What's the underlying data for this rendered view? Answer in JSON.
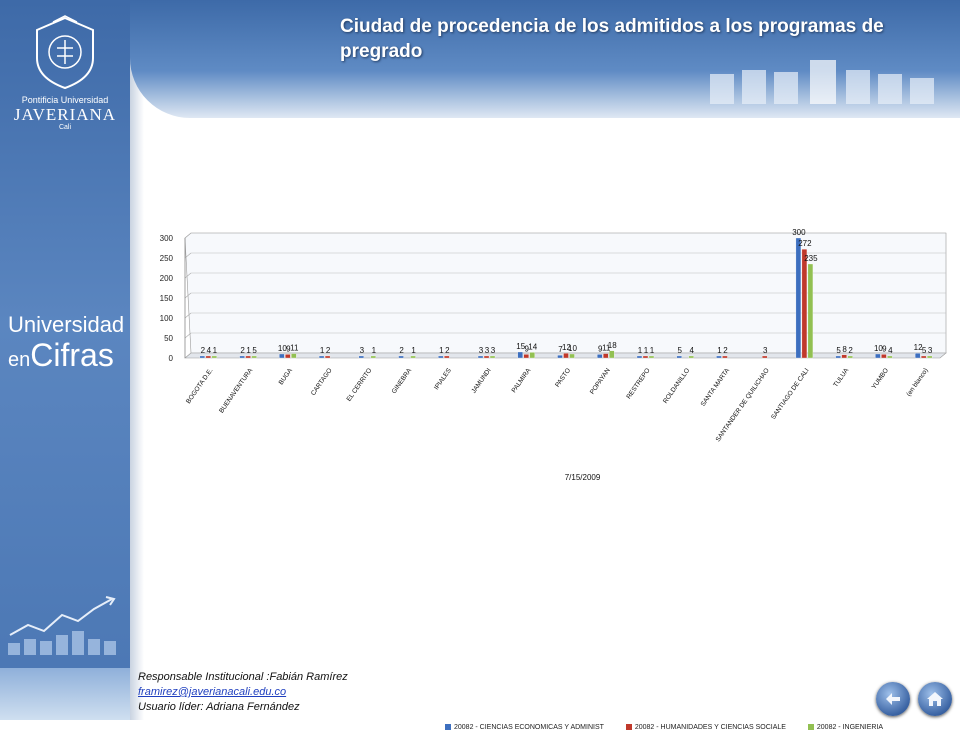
{
  "title": "Ciudad de procedencia de los admitidos a los programas de pregrado",
  "logo": {
    "line1": "Pontificia Universidad",
    "line2": "JAVERIANA",
    "line3": "Cali"
  },
  "brand": {
    "line1": "Universidad",
    "line2a": "en",
    "line2b": "Cifras"
  },
  "footer": {
    "responsible": "Responsable Institucional :Fabián Ramírez",
    "email": "framirez@javerianacali.edu.co",
    "leader": "Usuario líder: Adriana Fernández"
  },
  "colors": {
    "series1": "#3d6fbf",
    "series2": "#c0392b",
    "series3": "#92c052",
    "accent": "#4a76b3"
  },
  "icons": {
    "back": "back-arrow-icon",
    "home": "home-icon"
  },
  "chart_data": {
    "type": "bar",
    "title": "",
    "xlabel": "7/15/2009",
    "ylabel": "",
    "ylim": [
      0,
      300
    ],
    "yticks": [
      0,
      50,
      100,
      150,
      200,
      250,
      300
    ],
    "legend_position": "bottom",
    "categories": [
      "BOGOTA D.E.",
      "BUENAVENTURA",
      "BUGA",
      "CARTAGO",
      "EL CERRITO",
      "GINEBRA",
      "IPIALES",
      "JAMUNDI",
      "PALMIRA",
      "PASTO",
      "POPAYAN",
      "RESTREPO",
      "ROLDANILLO",
      "SANTA MARTA",
      "SANTANDER DE QUILICHAO",
      "SANTIAGO DE CALI",
      "TULUA",
      "YUMBO",
      "(en blanco)"
    ],
    "series": [
      {
        "name": "20082 - CIENCIAS ECONOMICAS Y ADMINIST",
        "values": [
          2,
          2,
          10,
          1,
          3,
          2,
          1,
          3,
          15,
          7,
          9,
          1,
          5,
          1,
          null,
          300,
          5,
          10,
          12
        ]
      },
      {
        "name": "20082 - HUMANIDADES Y CIENCIAS SOCIALE",
        "values": [
          4,
          1,
          9,
          2,
          null,
          null,
          2,
          3,
          9,
          12,
          11,
          1,
          null,
          2,
          3,
          272,
          8,
          9,
          5
        ]
      },
      {
        "name": "20082 - INGENIERIA",
        "values": [
          1,
          5,
          11,
          null,
          1,
          1,
          null,
          3,
          14,
          10,
          18,
          1,
          4,
          null,
          null,
          235,
          2,
          4,
          3
        ]
      }
    ]
  }
}
